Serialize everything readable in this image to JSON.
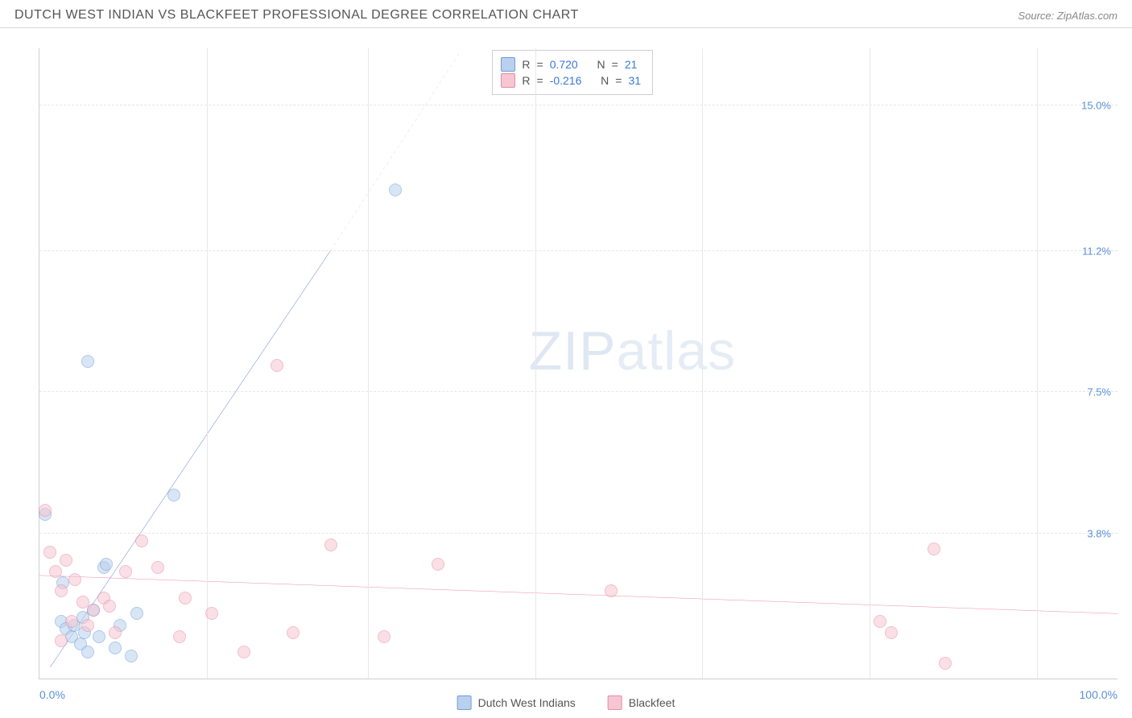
{
  "header": {
    "title": "DUTCH WEST INDIAN VS BLACKFEET PROFESSIONAL DEGREE CORRELATION CHART",
    "source": "Source: ZipAtlas.com"
  },
  "ylabel": "Professional Degree",
  "watermark": {
    "a": "ZIP",
    "b": "atlas"
  },
  "chart": {
    "type": "scatter",
    "xlim": [
      0,
      100
    ],
    "ylim": [
      0,
      16.5
    ],
    "background_color": "#ffffff",
    "grid_color": "#e5e5e5",
    "axis_color": "#cfcfcf",
    "tick_label_color": "#5b8fd6",
    "yticks": [
      {
        "v": 3.8,
        "label": "3.8%"
      },
      {
        "v": 7.5,
        "label": "7.5%"
      },
      {
        "v": 11.2,
        "label": "11.2%"
      },
      {
        "v": 15.0,
        "label": "15.0%"
      }
    ],
    "xgrid": [
      15.5,
      30.5,
      46,
      61.5,
      77,
      92.5
    ],
    "xaxis_labels": {
      "min": "0.0%",
      "max": "100.0%"
    },
    "marker_radius": 8,
    "marker_opacity": 0.55,
    "series": [
      {
        "name": "Dutch West Indians",
        "fill": "#b9d0ee",
        "stroke": "#6f9ed8",
        "points": [
          [
            0.5,
            4.3
          ],
          [
            2,
            1.5
          ],
          [
            2.5,
            1.3
          ],
          [
            3,
            1.1
          ],
          [
            3.2,
            1.4
          ],
          [
            3.8,
            0.9
          ],
          [
            4,
            1.6
          ],
          [
            4.2,
            1.2
          ],
          [
            4.5,
            0.7
          ],
          [
            5,
            1.8
          ],
          [
            5.5,
            1.1
          ],
          [
            6,
            2.9
          ],
          [
            6.2,
            3.0
          ],
          [
            7,
            0.8
          ],
          [
            7.5,
            1.4
          ],
          [
            8.5,
            0.6
          ],
          [
            9,
            1.7
          ],
          [
            12.5,
            4.8
          ],
          [
            4.5,
            8.3
          ],
          [
            33,
            12.8
          ],
          [
            2.2,
            2.5
          ]
        ],
        "trend": {
          "color": "#2e5db3",
          "width": 3,
          "dash_color": "#8aa8d8",
          "x1": 1,
          "y1": 0.3,
          "x2": 27,
          "y2": 11.2,
          "x3": 39,
          "y3": 16.4
        },
        "stats": {
          "r": "0.720",
          "n": "21"
        }
      },
      {
        "name": "Blackfeet",
        "fill": "#f6c7d2",
        "stroke": "#e68aa4",
        "points": [
          [
            0.5,
            4.4
          ],
          [
            1,
            3.3
          ],
          [
            2,
            2.3
          ],
          [
            2.5,
            3.1
          ],
          [
            3,
            1.5
          ],
          [
            3.3,
            2.6
          ],
          [
            4,
            2.0
          ],
          [
            5,
            1.8
          ],
          [
            6,
            2.1
          ],
          [
            7,
            1.2
          ],
          [
            8,
            2.8
          ],
          [
            9.5,
            3.6
          ],
          [
            11,
            2.9
          ],
          [
            13,
            1.1
          ],
          [
            13.5,
            2.1
          ],
          [
            16,
            1.7
          ],
          [
            19,
            0.7
          ],
          [
            22,
            8.2
          ],
          [
            23.5,
            1.2
          ],
          [
            27,
            3.5
          ],
          [
            32,
            1.1
          ],
          [
            37,
            3.0
          ],
          [
            53,
            2.3
          ],
          [
            78,
            1.5
          ],
          [
            79,
            1.2
          ],
          [
            83,
            3.4
          ],
          [
            84,
            0.4
          ],
          [
            2,
            1.0
          ],
          [
            4.5,
            1.4
          ],
          [
            6.5,
            1.9
          ],
          [
            1.5,
            2.8
          ]
        ],
        "trend": {
          "color": "#e85a8a",
          "width": 2.5,
          "x1": 0,
          "y1": 2.7,
          "x2": 100,
          "y2": 1.7
        },
        "stats": {
          "r": "-0.216",
          "n": "31"
        }
      }
    ]
  },
  "legend_top": {
    "r_label": "R",
    "n_label": "N",
    "eq": "="
  },
  "legend_bottom": [
    {
      "label": "Dutch West Indians",
      "fill": "#b9d0ee",
      "stroke": "#6f9ed8"
    },
    {
      "label": "Blackfeet",
      "fill": "#f6c7d2",
      "stroke": "#e68aa4"
    }
  ]
}
